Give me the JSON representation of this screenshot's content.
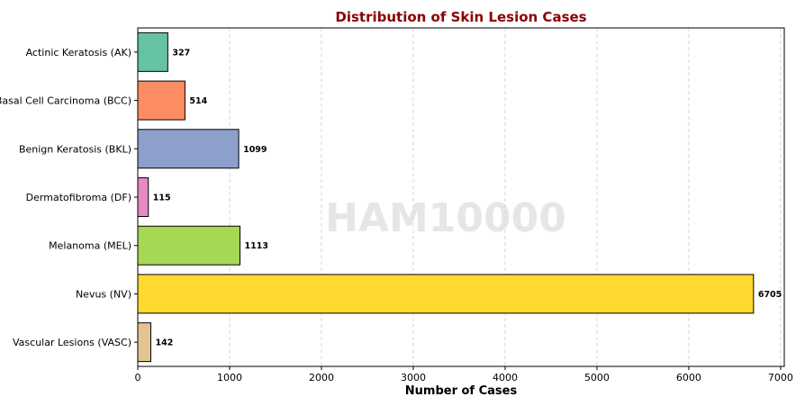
{
  "chart_data": {
    "type": "bar",
    "orientation": "horizontal",
    "title": "Distribution of Skin Lesion Cases",
    "xlabel": "Number of Cases",
    "ylabel": "",
    "watermark": "HAM10000",
    "categories": [
      "Actinic Keratosis (AK)",
      "Basal Cell Carcinoma (BCC)",
      "Benign Keratosis (BKL)",
      "Dermatofibroma (DF)",
      "Melanoma (MEL)",
      "Nevus (NV)",
      "Vascular Lesions (VASC)"
    ],
    "values": [
      327,
      514,
      1099,
      115,
      1113,
      6705,
      142
    ],
    "colors": [
      "#66c2a5",
      "#fc8d62",
      "#8da0cb",
      "#e78ac3",
      "#a6d854",
      "#ffd92f",
      "#e5c494"
    ],
    "xlim": [
      0,
      7040
    ],
    "xticks": [
      0,
      1000,
      2000,
      3000,
      4000,
      5000,
      6000,
      7000
    ],
    "grid": "x-dashed",
    "title_color": "#8b0000",
    "legend": "none"
  }
}
